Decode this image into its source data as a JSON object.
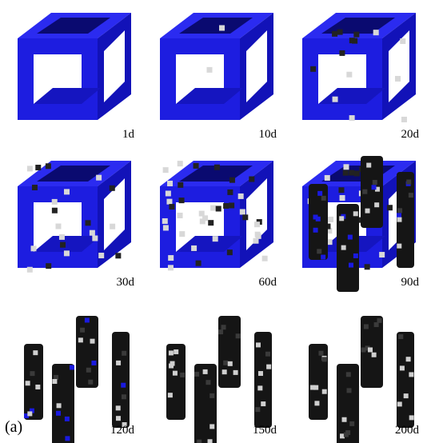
{
  "figure": {
    "label": "(a)",
    "panels": [
      {
        "label": "1d"
      },
      {
        "label": "10d"
      },
      {
        "label": "20d"
      },
      {
        "label": "30d"
      },
      {
        "label": "60d"
      },
      {
        "label": "90d"
      },
      {
        "label": "120d"
      },
      {
        "label": "150d"
      },
      {
        "label": "200d"
      }
    ]
  }
}
